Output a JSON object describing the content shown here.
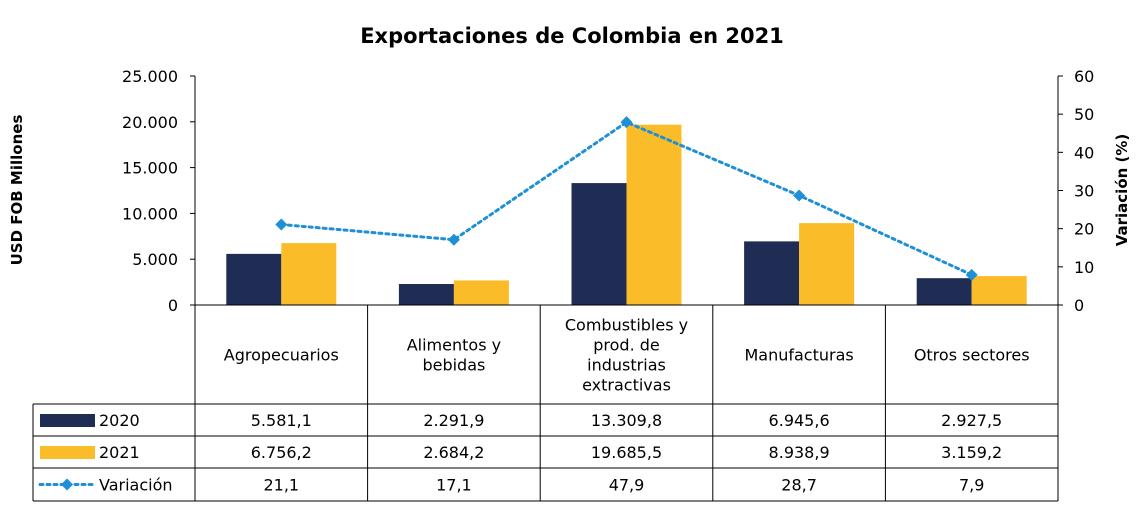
{
  "chart_data": {
    "type": "bar",
    "title": "Exportaciones de Colombia en 2021",
    "ylabel": "USD FOB Millones",
    "y2label": "Variación (%)",
    "ylim": [
      0,
      25000
    ],
    "y2lim": [
      0,
      60
    ],
    "y_ticks": [
      "0",
      "5.000",
      "10.000",
      "15.000",
      "20.000",
      "25.000"
    ],
    "y2_ticks": [
      "0",
      "10",
      "20",
      "30",
      "40",
      "50",
      "60"
    ],
    "categories": [
      [
        "Agropecuarios"
      ],
      [
        "Alimentos y",
        "bebidas"
      ],
      [
        "Combustibles y",
        "prod. de",
        "industrias",
        "extractivas"
      ],
      [
        "Manufacturas"
      ],
      [
        "Otros sectores"
      ]
    ],
    "series": [
      {
        "name": "2020",
        "kind": "bar",
        "color": "#1f2d55",
        "values": [
          5581.1,
          2291.9,
          13309.8,
          6945.6,
          2927.5
        ],
        "labels": [
          "5.581,1",
          "2.291,9",
          "13.309,8",
          "6.945,6",
          "2.927,5"
        ]
      },
      {
        "name": "2021",
        "kind": "bar",
        "color": "#fbbc2a",
        "values": [
          6756.2,
          2684.2,
          19685.5,
          8938.9,
          3159.2
        ],
        "labels": [
          "6.756,2",
          "2.684,2",
          "19.685,5",
          "8.938,9",
          "3.159,2"
        ]
      },
      {
        "name": "Variación",
        "kind": "line",
        "axis": "right",
        "color": "#1f8fd6",
        "values": [
          21.1,
          17.1,
          47.9,
          28.7,
          7.9
        ],
        "labels": [
          "21,1",
          "17,1",
          "47,9",
          "28,7",
          "7,9"
        ]
      }
    ]
  }
}
